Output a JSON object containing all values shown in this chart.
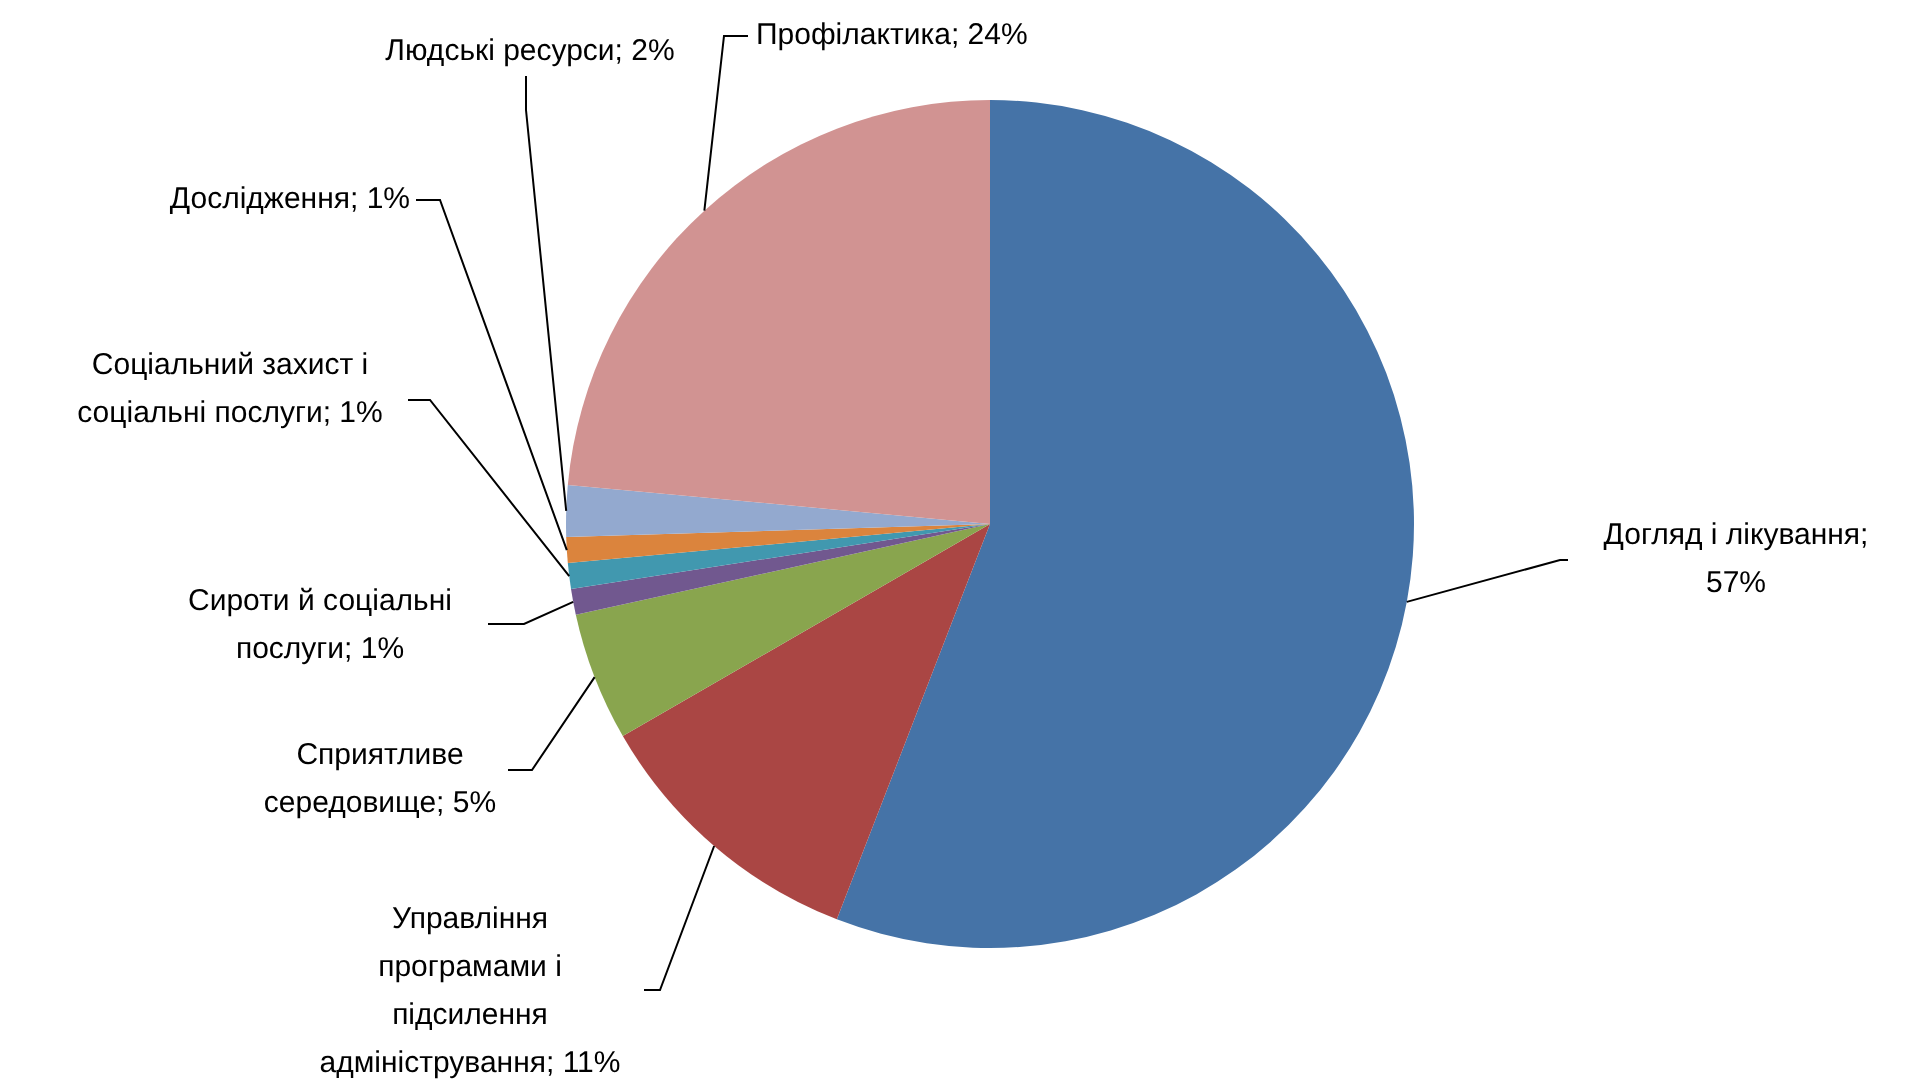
{
  "chart_data": {
    "type": "pie",
    "categories": [
      "Догляд і лікування",
      "Управління програмами і підсилення адміністрування",
      "Сприятливе середовище",
      "Сироти й соціальні послуги",
      "Соціальний захист і соціальні послуги",
      "Дослідження",
      "Людські ресурси",
      "Профілактика"
    ],
    "values": [
      57,
      11,
      5,
      1,
      1,
      1,
      2,
      24
    ],
    "value_labels": [
      "; 57%",
      "; 11%",
      "; 5%",
      "; 1%",
      "; 1%",
      "; 1%",
      "; 2%",
      "; 24%"
    ],
    "colors": [
      "#4573a7",
      "#aa4644",
      "#89a54e",
      "#71588f",
      "#4198af",
      "#db843d",
      "#93a9cf",
      "#d19392"
    ]
  }
}
